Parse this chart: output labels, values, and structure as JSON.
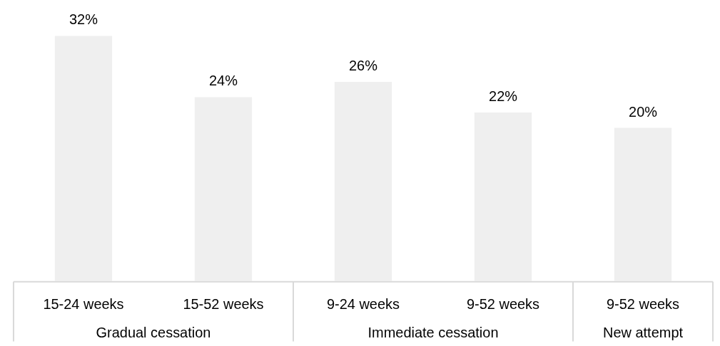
{
  "chart_data": {
    "type": "bar",
    "categories": [
      "15-24 weeks",
      "15-52 weeks",
      "9-24 weeks",
      "9-52 weeks",
      "9-52 weeks"
    ],
    "values": [
      32,
      24,
      26,
      22,
      20
    ],
    "value_labels": [
      "32%",
      "24%",
      "26%",
      "22%",
      "20%"
    ],
    "color": "#efefef",
    "annotations": [
      "Gradual cessation",
      "Immediate cessation",
      "New attempt"
    ]
  }
}
